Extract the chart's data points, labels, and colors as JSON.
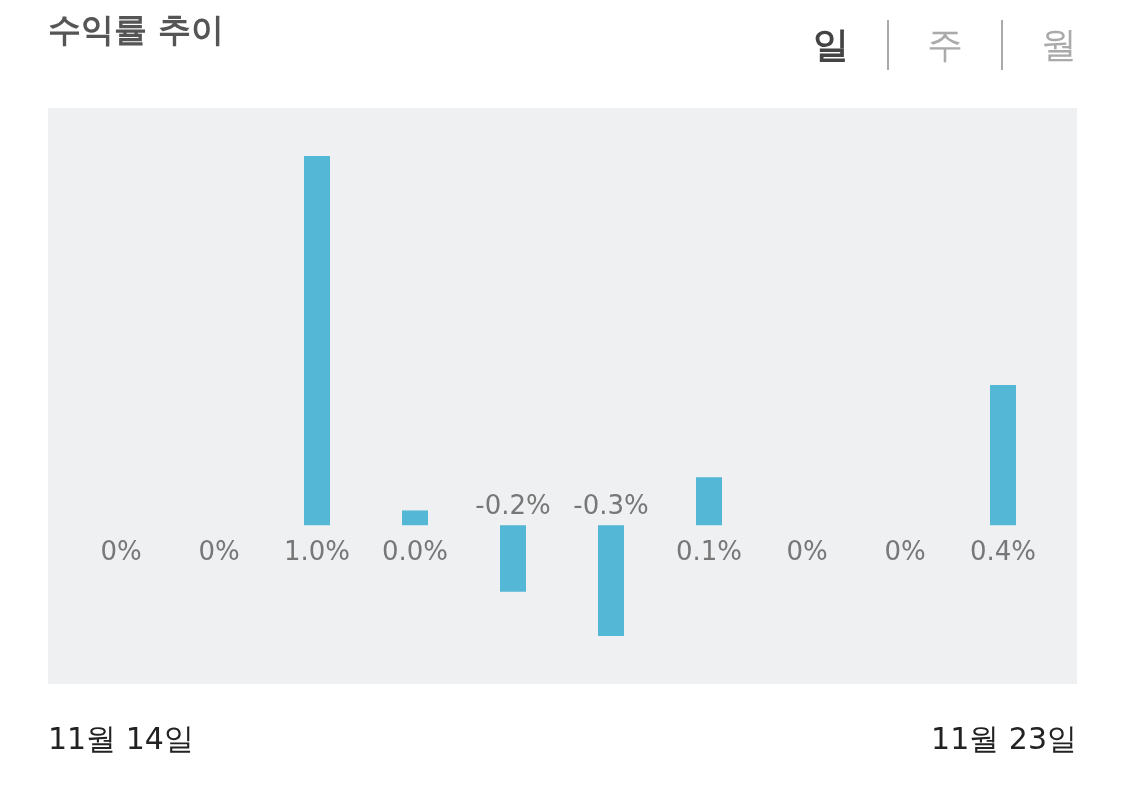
{
  "chart_data": {
    "type": "bar",
    "title": "수익률 추이",
    "annotations": [
      "일",
      "주",
      "월"
    ],
    "categories": [
      "11월 14일",
      null,
      null,
      null,
      null,
      null,
      null,
      null,
      null,
      "11월 23일"
    ],
    "values": [
      0,
      0,
      1.0,
      0.04,
      -0.18,
      -0.3,
      0.13,
      0,
      0,
      0.38
    ],
    "value_labels": [
      "0%",
      "0%",
      "1.0%",
      "0.0%",
      "-0.2%",
      "-0.3%",
      "0.1%",
      "0%",
      "0%",
      "0.4%"
    ],
    "color": "#54b7d5"
  }
}
